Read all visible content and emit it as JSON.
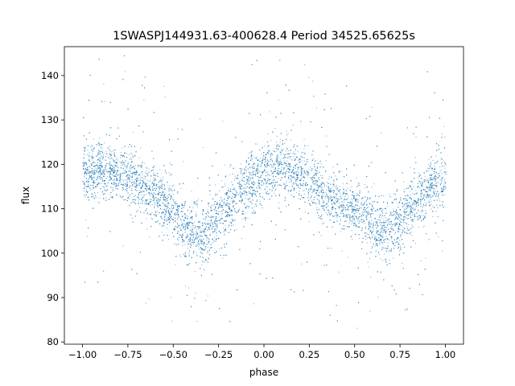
{
  "chart_data": {
    "type": "scatter",
    "title": "1SWASPJ144931.63-400628.4 Period 34525.65625s",
    "xlabel": "phase",
    "ylabel": "flux",
    "xlim": [
      -1.1,
      1.1
    ],
    "ylim": [
      79.5,
      146.5
    ],
    "xticks": [
      -1.0,
      -0.75,
      -0.5,
      -0.25,
      0.0,
      0.25,
      0.5,
      0.75,
      1.0
    ],
    "xtick_labels": [
      "−1.00",
      "−0.75",
      "−0.50",
      "−0.25",
      "0.00",
      "0.25",
      "0.50",
      "0.75",
      "1.00"
    ],
    "yticks": [
      80,
      90,
      100,
      110,
      120,
      130,
      140
    ],
    "ytick_labels": [
      "80",
      "90",
      "100",
      "110",
      "120",
      "130",
      "140"
    ],
    "grid": false,
    "legend": "none",
    "marker_color": "#1f77b4",
    "series": [
      {
        "phase": [
          -1.0,
          -0.9,
          -0.8,
          -0.7,
          -0.6,
          -0.5,
          -0.4,
          -0.35,
          -0.3,
          -0.2,
          -0.1,
          0.0,
          0.1,
          0.15,
          0.2,
          0.3,
          0.4,
          0.5,
          0.6,
          0.65,
          0.7,
          0.8,
          0.9,
          1.0
        ],
        "flux": [
          117.5,
          119.0,
          118.5,
          116.0,
          113.5,
          109.0,
          104.5,
          104.0,
          105.5,
          110.5,
          115.5,
          118.0,
          119.5,
          119.0,
          118.0,
          115.0,
          112.0,
          109.5,
          106.0,
          104.5,
          105.5,
          109.5,
          114.5,
          117.5
        ],
        "scatter_width": [
          3.2,
          3.2,
          3.0,
          3.0,
          3.0,
          3.2,
          3.5,
          3.5,
          3.5,
          3.2,
          3.2,
          3.2,
          3.2,
          3.2,
          3.0,
          3.0,
          3.0,
          3.0,
          3.2,
          3.5,
          3.5,
          3.2,
          3.2,
          3.2
        ]
      }
    ]
  }
}
